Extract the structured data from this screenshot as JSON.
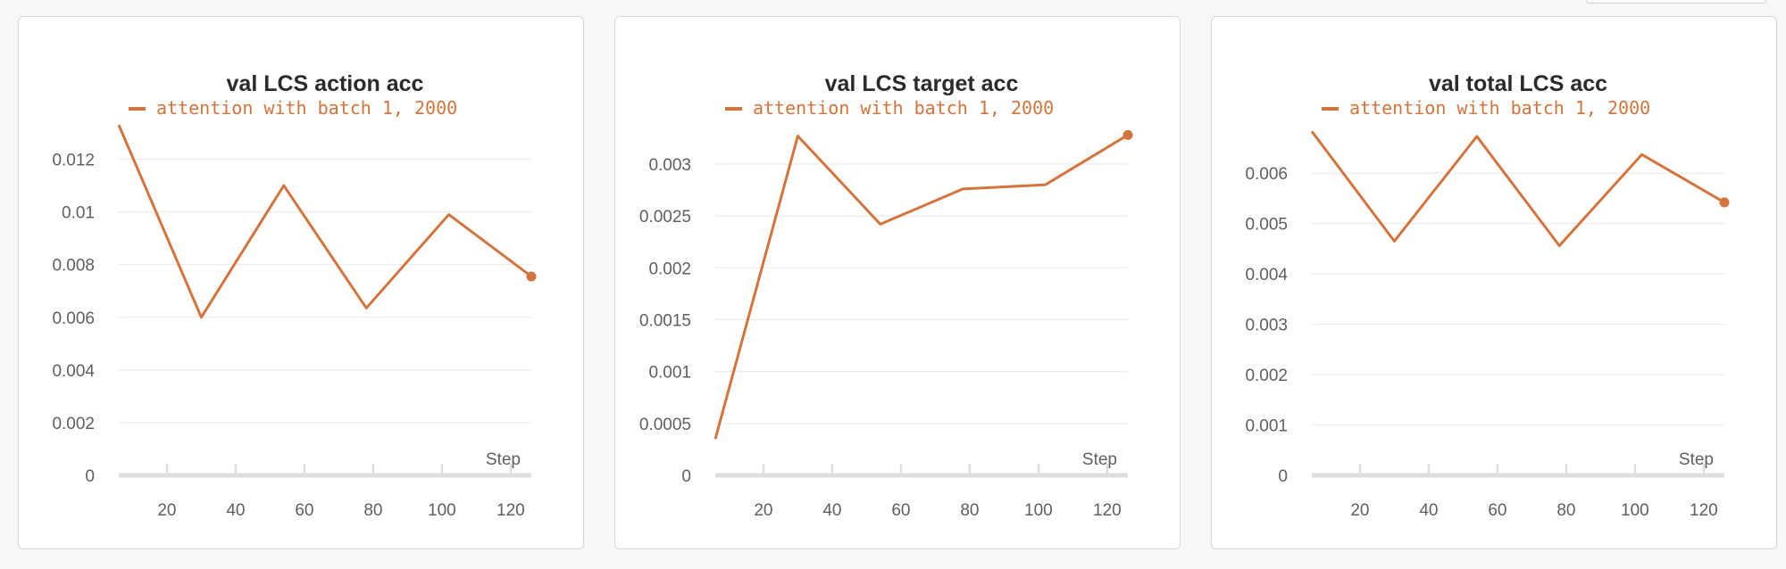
{
  "chart_data": [
    {
      "type": "line",
      "title": "val LCS action acc",
      "xlabel": "Step",
      "ylabel": "",
      "legend": "top",
      "grid": true,
      "color": "#d4743c",
      "series": [
        {
          "name": "attention with batch 1, 2000",
          "x": [
            6,
            30,
            54,
            78,
            102,
            126
          ],
          "y": [
            0.0133,
            0.006,
            0.011,
            0.00635,
            0.0099,
            0.00755
          ]
        }
      ],
      "xlim": [
        6,
        126
      ],
      "ylim": [
        0,
        0.013
      ],
      "xticks": [
        20,
        40,
        60,
        80,
        100,
        120
      ],
      "yticks": [
        0,
        0.002,
        0.004,
        0.006,
        0.008,
        0.01,
        0.012
      ],
      "ytick_labels": [
        "0",
        "0.002",
        "0.004",
        "0.006",
        "0.008",
        "0.01",
        "0.012"
      ]
    },
    {
      "type": "line",
      "title": "val LCS target acc",
      "xlabel": "Step",
      "ylabel": "",
      "legend": "top",
      "grid": true,
      "color": "#d4743c",
      "series": [
        {
          "name": "attention with batch 1, 2000",
          "x": [
            6,
            30,
            54,
            78,
            102,
            126
          ],
          "y": [
            0.00035,
            0.00327,
            0.00242,
            0.00276,
            0.0028,
            0.00328
          ]
        }
      ],
      "xlim": [
        6,
        126
      ],
      "ylim": [
        0,
        0.0033
      ],
      "xticks": [
        20,
        40,
        60,
        80,
        100,
        120
      ],
      "yticks": [
        0,
        0.0005,
        0.001,
        0.0015,
        0.002,
        0.0025,
        0.003
      ],
      "ytick_labels": [
        "0",
        "0.0005",
        "0.001",
        "0.0015",
        "0.002",
        "0.0025",
        "0.003"
      ]
    },
    {
      "type": "line",
      "title": "val total LCS acc",
      "xlabel": "Step",
      "ylabel": "",
      "legend": "top",
      "grid": true,
      "color": "#d4743c",
      "series": [
        {
          "name": "attention with batch 1, 2000",
          "x": [
            6,
            30,
            54,
            78,
            102,
            126
          ],
          "y": [
            0.00683,
            0.00465,
            0.00673,
            0.00456,
            0.00637,
            0.00542
          ]
        }
      ],
      "xlim": [
        6,
        126
      ],
      "ylim": [
        0,
        0.0068
      ],
      "xticks": [
        20,
        40,
        60,
        80,
        100,
        120
      ],
      "yticks": [
        0,
        0.001,
        0.002,
        0.003,
        0.004,
        0.005,
        0.006
      ],
      "ytick_labels": [
        "0",
        "0.001",
        "0.002",
        "0.003",
        "0.004",
        "0.005",
        "0.006"
      ]
    }
  ]
}
